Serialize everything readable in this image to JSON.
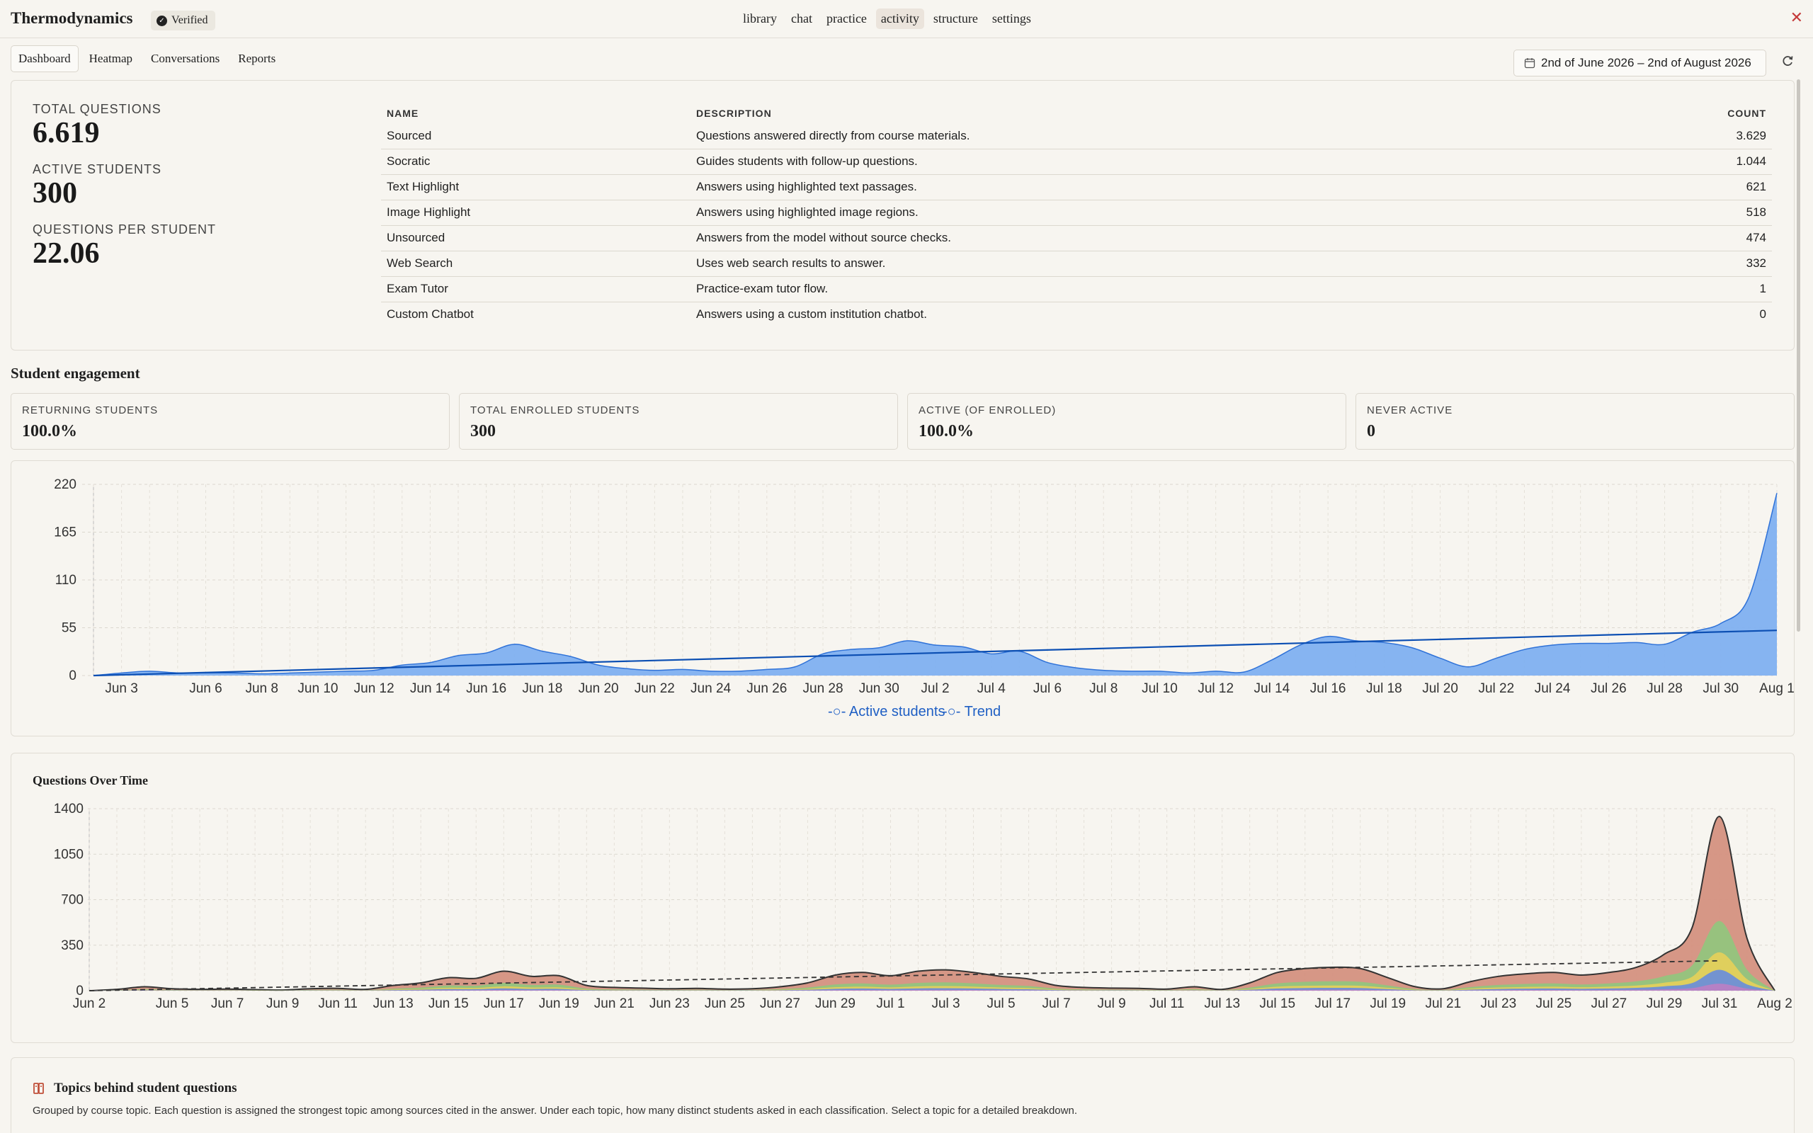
{
  "app": {
    "title": "Thermodynamics",
    "badge": "Verified"
  },
  "nav": [
    {
      "label": "library"
    },
    {
      "label": "chat"
    },
    {
      "label": "practice"
    },
    {
      "label": "activity",
      "active": true
    },
    {
      "label": "structure"
    },
    {
      "label": "settings"
    }
  ],
  "subtabs": [
    {
      "label": "Dashboard",
      "active": true
    },
    {
      "label": "Heatmap"
    },
    {
      "label": "Conversations"
    },
    {
      "label": "Reports"
    }
  ],
  "date_range": "2nd of June 2026 – 2nd of August 2026",
  "stats": {
    "total_questions_label": "TOTAL QUESTIONS",
    "total_questions": "6.619",
    "active_students_label": "ACTIVE STUDENTS",
    "active_students": "300",
    "qps_label": "QUESTIONS PER STUDENT",
    "qps": "22.06"
  },
  "types_table": {
    "headers": {
      "name": "NAME",
      "description": "DESCRIPTION",
      "count": "COUNT"
    },
    "rows": [
      {
        "name": "Sourced",
        "description": "Questions answered directly from course materials.",
        "count": "3.629"
      },
      {
        "name": "Socratic",
        "description": "Guides students with follow-up questions.",
        "count": "1.044"
      },
      {
        "name": "Text Highlight",
        "description": "Answers using highlighted text passages.",
        "count": "621"
      },
      {
        "name": "Image Highlight",
        "description": "Answers using highlighted image regions.",
        "count": "518"
      },
      {
        "name": "Unsourced",
        "description": "Answers from the model without source checks.",
        "count": "474"
      },
      {
        "name": "Web Search",
        "description": "Uses web search results to answer.",
        "count": "332"
      },
      {
        "name": "Exam Tutor",
        "description": "Practice-exam tutor flow.",
        "count": "1"
      },
      {
        "name": "Custom Chatbot",
        "description": "Answers using a custom institution chatbot.",
        "count": "0"
      }
    ]
  },
  "engagement": {
    "title": "Student engagement",
    "cards": [
      {
        "label": "RETURNING STUDENTS",
        "value": "100.0%"
      },
      {
        "label": "TOTAL ENROLLED STUDENTS",
        "value": "300"
      },
      {
        "label": "ACTIVE (OF ENROLLED)",
        "value": "100.0%"
      },
      {
        "label": "NEVER ACTIVE",
        "value": "0"
      }
    ]
  },
  "colors": {
    "active_fill": "#7fb0f0",
    "active_line": "#2f72d8",
    "trend": "#0c4fb3",
    "q_stack": [
      "#d4917f",
      "#93c47d",
      "#e3d05c",
      "#6d8fd6",
      "#b87fc4"
    ]
  },
  "chart_data": [
    {
      "type": "area",
      "title": "",
      "x": [
        "Jun 2",
        "Jun 3",
        "Jun 4",
        "Jun 5",
        "Jun 6",
        "Jun 7",
        "Jun 8",
        "Jun 9",
        "Jun 10",
        "Jun 11",
        "Jun 12",
        "Jun 13",
        "Jun 14",
        "Jun 15",
        "Jun 16",
        "Jun 17",
        "Jun 18",
        "Jun 19",
        "Jun 20",
        "Jun 21",
        "Jun 22",
        "Jun 23",
        "Jun 24",
        "Jun 25",
        "Jun 26",
        "Jun 27",
        "Jun 28",
        "Jun 29",
        "Jun 30",
        "Jul 1",
        "Jul 2",
        "Jul 3",
        "Jul 4",
        "Jul 5",
        "Jul 6",
        "Jul 7",
        "Jul 8",
        "Jul 9",
        "Jul 10",
        "Jul 11",
        "Jul 12",
        "Jul 13",
        "Jul 14",
        "Jul 15",
        "Jul 16",
        "Jul 17",
        "Jul 18",
        "Jul 19",
        "Jul 20",
        "Jul 21",
        "Jul 22",
        "Jul 23",
        "Jul 24",
        "Jul 25",
        "Jul 26",
        "Jul 27",
        "Jul 28",
        "Jul 29",
        "Jul 30",
        "Jul 31",
        "Aug 1"
      ],
      "xticks": [
        "Jun 3",
        "Jun 6",
        "Jun 8",
        "Jun 10",
        "Jun 12",
        "Jun 14",
        "Jun 16",
        "Jun 18",
        "Jun 20",
        "Jun 22",
        "Jun 24",
        "Jun 26",
        "Jun 28",
        "Jun 30",
        "Jul 2",
        "Jul 4",
        "Jul 6",
        "Jul 8",
        "Jul 10",
        "Jul 12",
        "Jul 14",
        "Jul 16",
        "Jul 18",
        "Jul 20",
        "Jul 22",
        "Jul 24",
        "Jul 26",
        "Jul 28",
        "Jul 30",
        "Aug 1"
      ],
      "yticks": [
        0,
        55,
        110,
        165,
        220
      ],
      "ylim": [
        0,
        220
      ],
      "series": [
        {
          "name": "Active students",
          "values": [
            0,
            3,
            5,
            3,
            3,
            3,
            2,
            3,
            4,
            5,
            6,
            12,
            15,
            23,
            26,
            36,
            28,
            22,
            12,
            8,
            6,
            7,
            5,
            5,
            7,
            10,
            25,
            30,
            32,
            40,
            35,
            33,
            25,
            28,
            15,
            9,
            6,
            5,
            5,
            3,
            5,
            4,
            18,
            35,
            45,
            40,
            38,
            32,
            20,
            10,
            20,
            30,
            35,
            37,
            37,
            38,
            36,
            50,
            60,
            90,
            210
          ]
        },
        {
          "name": "Trend",
          "values_start": 0,
          "values_end": 52
        }
      ],
      "legend": "bottom-center",
      "grid": true
    },
    {
      "type": "area",
      "title": "Questions Over Time",
      "x": [
        "Jun 2",
        "Jun 3",
        "Jun 4",
        "Jun 5",
        "Jun 6",
        "Jun 7",
        "Jun 8",
        "Jun 9",
        "Jun 10",
        "Jun 11",
        "Jun 12",
        "Jun 13",
        "Jun 14",
        "Jun 15",
        "Jun 16",
        "Jun 17",
        "Jun 18",
        "Jun 19",
        "Jun 20",
        "Jun 21",
        "Jun 22",
        "Jun 23",
        "Jun 24",
        "Jun 25",
        "Jun 26",
        "Jun 27",
        "Jun 28",
        "Jun 29",
        "Jun 30",
        "Jul 1",
        "Jul 2",
        "Jul 3",
        "Jul 4",
        "Jul 5",
        "Jul 6",
        "Jul 7",
        "Jul 8",
        "Jul 9",
        "Jul 10",
        "Jul 11",
        "Jul 12",
        "Jul 13",
        "Jul 14",
        "Jul 15",
        "Jul 16",
        "Jul 17",
        "Jul 18",
        "Jul 19",
        "Jul 20",
        "Jul 21",
        "Jul 22",
        "Jul 23",
        "Jul 24",
        "Jul 25",
        "Jul 26",
        "Jul 27",
        "Jul 28",
        "Jul 29",
        "Jul 30",
        "Jul 31",
        "Aug 1",
        "Aug 2"
      ],
      "xticks": [
        "Jun 2",
        "Jun 5",
        "Jun 7",
        "Jun 9",
        "Jun 11",
        "Jun 13",
        "Jun 15",
        "Jun 17",
        "Jun 19",
        "Jun 21",
        "Jun 23",
        "Jun 25",
        "Jun 27",
        "Jun 29",
        "Jul 1",
        "Jul 3",
        "Jul 5",
        "Jul 7",
        "Jul 9",
        "Jul 11",
        "Jul 13",
        "Jul 15",
        "Jul 17",
        "Jul 19",
        "Jul 21",
        "Jul 23",
        "Jul 25",
        "Jul 27",
        "Jul 29",
        "Jul 31",
        "Aug 2"
      ],
      "yticks": [
        0,
        350,
        700,
        1050,
        1400
      ],
      "ylim": [
        0,
        1400
      ],
      "total": [
        0,
        10,
        30,
        15,
        10,
        12,
        8,
        5,
        15,
        18,
        10,
        40,
        60,
        100,
        95,
        150,
        110,
        115,
        40,
        25,
        20,
        15,
        18,
        12,
        15,
        30,
        60,
        120,
        140,
        115,
        150,
        160,
        140,
        110,
        90,
        40,
        25,
        20,
        18,
        12,
        30,
        10,
        60,
        140,
        170,
        180,
        170,
        100,
        30,
        15,
        70,
        110,
        130,
        140,
        120,
        140,
        180,
        280,
        480,
        1340,
        400,
        0
      ],
      "layers_fraction": [
        0.6,
        0.18,
        0.1,
        0.08,
        0.04
      ],
      "trend_end": 230,
      "grid": true
    }
  ],
  "topics": {
    "title": "Topics behind student questions",
    "description": "Grouped by course topic. Each question is assigned the strongest topic among sources cited in the answer. Under each topic, how many distinct students asked in each classification. Select a topic for a detailed breakdown."
  }
}
